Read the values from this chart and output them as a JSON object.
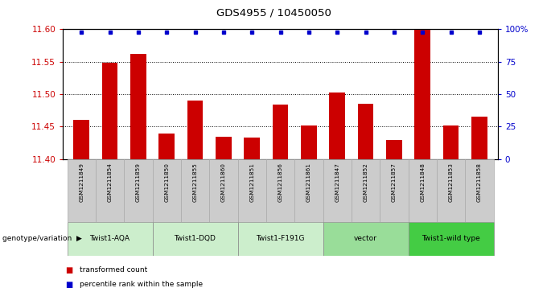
{
  "title": "GDS4955 / 10450050",
  "samples": [
    "GSM1211849",
    "GSM1211854",
    "GSM1211859",
    "GSM1211850",
    "GSM1211855",
    "GSM1211860",
    "GSM1211851",
    "GSM1211856",
    "GSM1211861",
    "GSM1211847",
    "GSM1211852",
    "GSM1211857",
    "GSM1211848",
    "GSM1211853",
    "GSM1211858"
  ],
  "bar_values": [
    11.46,
    11.548,
    11.562,
    11.44,
    11.49,
    11.435,
    11.433,
    11.484,
    11.452,
    11.502,
    11.485,
    11.43,
    11.6,
    11.452,
    11.465
  ],
  "ylim_left": [
    11.4,
    11.6
  ],
  "ylim_right": [
    0,
    100
  ],
  "yticks_left": [
    11.4,
    11.45,
    11.5,
    11.55,
    11.6
  ],
  "yticks_right": [
    0,
    25,
    50,
    75,
    100
  ],
  "grid_lines": [
    11.45,
    11.5,
    11.55
  ],
  "bar_color": "#cc0000",
  "dot_color": "#0000cc",
  "groups": [
    {
      "label": "Twist1-AQA",
      "start": 0,
      "end": 2
    },
    {
      "label": "Twist1-DQD",
      "start": 3,
      "end": 5
    },
    {
      "label": "Twist1-F191G",
      "start": 6,
      "end": 8
    },
    {
      "label": "vector",
      "start": 9,
      "end": 11
    },
    {
      "label": "Twist1-wild type",
      "start": 12,
      "end": 14
    }
  ],
  "group_colors": [
    "#cceecc",
    "#cceecc",
    "#cceecc",
    "#99dd99",
    "#44cc44"
  ],
  "legend_items": [
    "transformed count",
    "percentile rank within the sample"
  ],
  "tick_color_left": "#cc0000",
  "tick_color_right": "#0000cc",
  "sample_cell_color": "#cccccc",
  "sample_cell_edge": "#aaaaaa"
}
